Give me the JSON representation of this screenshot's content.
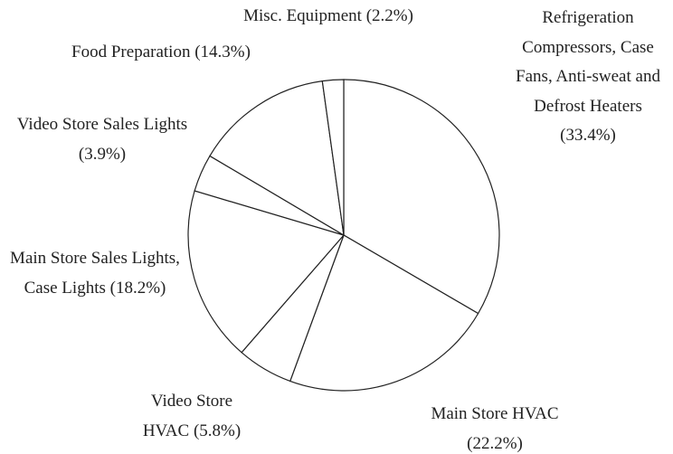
{
  "chart_data": {
    "type": "pie",
    "categories": [
      "Refrigeration Compressors, Case Fans, Anti-sweat and Defrost Heaters",
      "Main Store HVAC",
      "Video Store HVAC",
      "Main Store Sales Lights, Case Lights",
      "Video Store Sales Lights",
      "Food Preparation",
      "Misc. Equipment"
    ],
    "values": [
      33.4,
      22.2,
      5.8,
      18.2,
      3.9,
      14.3,
      2.2
    ],
    "value_labels": [
      "(33.4%)",
      "(22.2%)",
      "(5.8%)",
      "(18.2%)",
      "(3.9%)",
      "(14.3%)",
      "(2.2%)"
    ],
    "color": "#ffffff",
    "stroke": "#222222"
  }
}
